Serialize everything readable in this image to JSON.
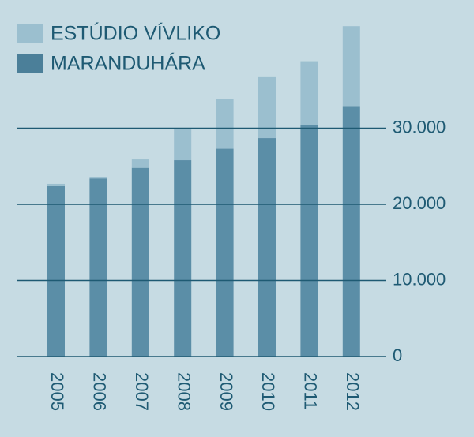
{
  "chart_data": {
    "type": "stacked_bar",
    "categories": [
      "2005",
      "2006",
      "2007",
      "2008",
      "2009",
      "2010",
      "2011",
      "2012"
    ],
    "series": [
      {
        "name": "MARANDUHÁRA",
        "color": "#5b8ea7",
        "values": [
          22400,
          23400,
          24800,
          25800,
          27300,
          28700,
          30400,
          32800
        ]
      },
      {
        "name": "ESTÚDIO VÍVLIKO",
        "color": "#9bbfcf",
        "values": [
          300,
          200,
          1100,
          4200,
          6500,
          8100,
          8400,
          10600
        ]
      }
    ],
    "ylim": [
      0,
      45000
    ],
    "yticks": [
      0,
      {
        "value": 10000,
        "label": "10.000"
      },
      {
        "value": 20000,
        "label": "20.000"
      },
      {
        "value": 30000,
        "label": "30.000"
      }
    ],
    "grid": true,
    "legend": "top-left"
  }
}
